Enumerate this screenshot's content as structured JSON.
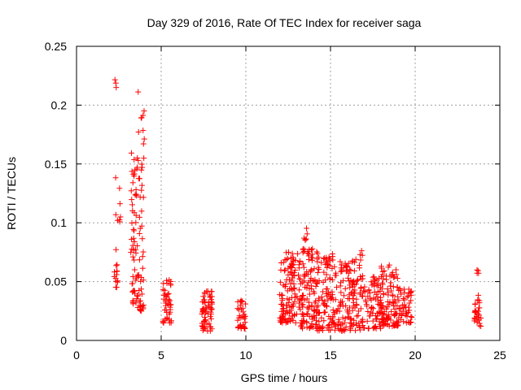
{
  "chart_data": {
    "type": "scatter",
    "title": "Day 329 of 2016, Rate Of TEC Index for receiver saga",
    "xlabel": "GPS time / hours",
    "ylabel": "ROTI / TECUs",
    "xlim": [
      0,
      25
    ],
    "ylim": [
      0,
      0.25
    ],
    "xticks": [
      0,
      5,
      10,
      15,
      20,
      25
    ],
    "xtick_labels": [
      "0",
      "5",
      "10",
      "15",
      "20",
      "25"
    ],
    "yticks": [
      0,
      0.05,
      0.1,
      0.15,
      0.2,
      0.25
    ],
    "ytick_labels": [
      "0",
      "0.05",
      "0.1",
      "0.15",
      "0.2",
      "0.25"
    ],
    "grid": true,
    "marker": "+",
    "color": "#ff0000",
    "series": [
      {
        "name": "ROTI",
        "clusters": [
          {
            "x_range": [
              2.2,
              2.45
            ],
            "y_range": [
              0.045,
              0.08
            ],
            "count": 14
          },
          {
            "x_range": [
              2.25,
              2.35
            ],
            "y_range": [
              0.215,
              0.222
            ],
            "count": 3
          },
          {
            "x_range": [
              2.3,
              2.6
            ],
            "y_range": [
              0.1,
              0.155
            ],
            "count": 8
          },
          {
            "x_range": [
              3.2,
              3.6
            ],
            "y_range": [
              0.03,
              0.16
            ],
            "count": 55
          },
          {
            "x_range": [
              3.6,
              4.0
            ],
            "y_range": [
              0.025,
              0.225
            ],
            "count": 55
          },
          {
            "x_range": [
              5.1,
              5.6
            ],
            "y_range": [
              0.015,
              0.052
            ],
            "count": 45
          },
          {
            "x_range": [
              7.4,
              8.0
            ],
            "y_range": [
              0.008,
              0.043
            ],
            "count": 65
          },
          {
            "x_range": [
              9.5,
              10.0
            ],
            "y_range": [
              0.01,
              0.035
            ],
            "count": 35
          },
          {
            "x_range": [
              12.0,
              13.2
            ],
            "y_range": [
              0.015,
              0.075
            ],
            "count": 120
          },
          {
            "x_range": [
              13.2,
              14.2
            ],
            "y_range": [
              0.01,
              0.08
            ],
            "count": 110
          },
          {
            "x_range": [
              13.4,
              13.7
            ],
            "y_range": [
              0.085,
              0.1
            ],
            "count": 6
          },
          {
            "x_range": [
              14.2,
              15.6
            ],
            "y_range": [
              0.008,
              0.075
            ],
            "count": 120
          },
          {
            "x_range": [
              15.6,
              16.8
            ],
            "y_range": [
              0.008,
              0.07
            ],
            "count": 110
          },
          {
            "x_range": [
              16.6,
              16.9
            ],
            "y_range": [
              0.072,
              0.078
            ],
            "count": 3
          },
          {
            "x_range": [
              16.8,
              18.2
            ],
            "y_range": [
              0.01,
              0.055
            ],
            "count": 100
          },
          {
            "x_range": [
              18.0,
              19.0
            ],
            "y_range": [
              0.012,
              0.065
            ],
            "count": 90
          },
          {
            "x_range": [
              19.0,
              19.8
            ],
            "y_range": [
              0.015,
              0.045
            ],
            "count": 50
          },
          {
            "x_range": [
              23.5,
              23.9
            ],
            "y_range": [
              0.012,
              0.04
            ],
            "count": 30
          },
          {
            "x_range": [
              23.6,
              23.8
            ],
            "y_range": [
              0.057,
              0.06
            ],
            "count": 4
          }
        ]
      }
    ]
  }
}
